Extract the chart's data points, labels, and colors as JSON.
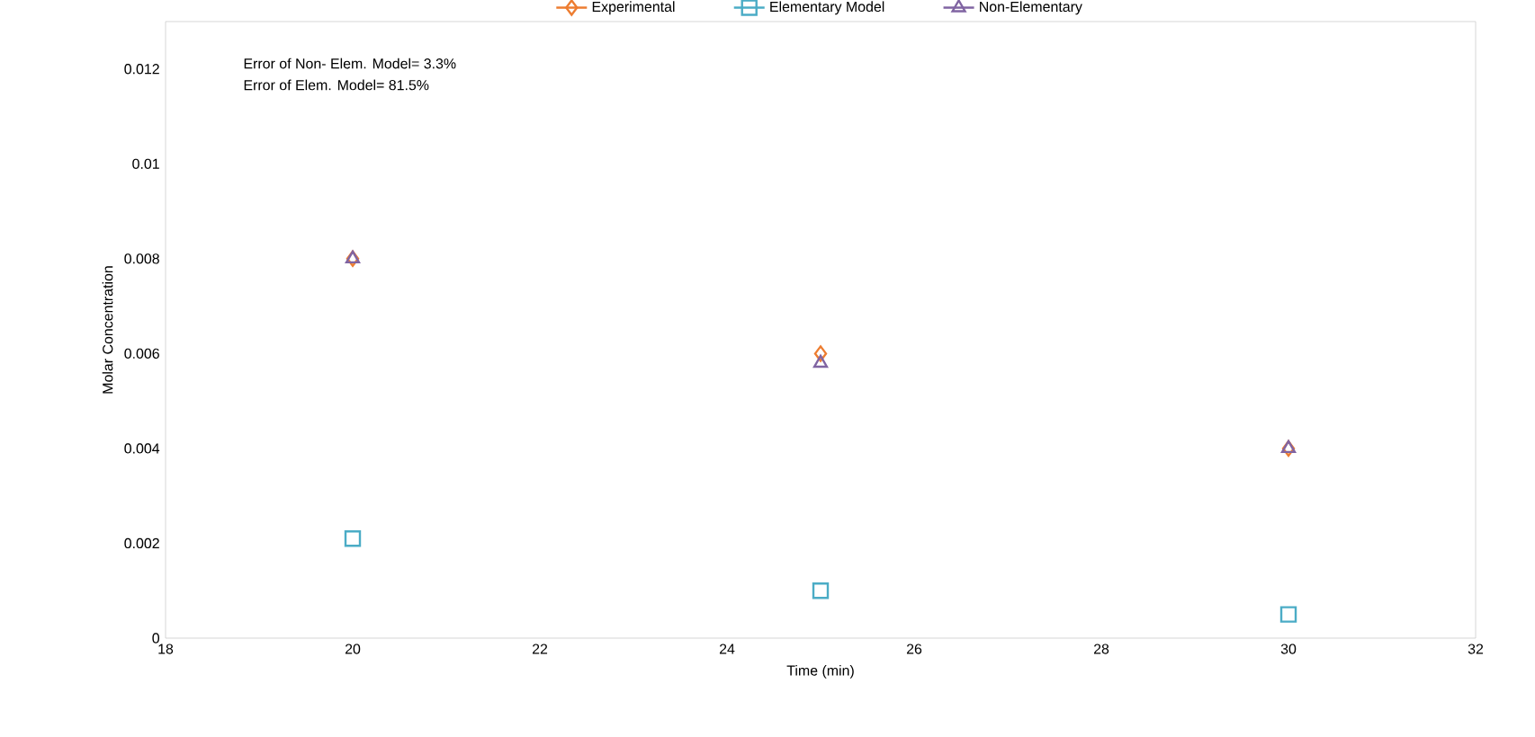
{
  "chart_data": {
    "type": "scatter",
    "xlabel": "Time (min)",
    "ylabel": "Molar  Concentration",
    "x": [
      20,
      25,
      30
    ],
    "series": [
      {
        "name": "Experimental",
        "color": "#ed7d31",
        "marker": "diamond",
        "values": [
          0.008,
          0.006,
          0.004
        ]
      },
      {
        "name": "Elementary Model",
        "color": "#4bacc6",
        "marker": "square",
        "values": [
          0.0021,
          0.001,
          0.0005
        ]
      },
      {
        "name": "Non-Elementary",
        "color": "#8064a2",
        "marker": "triangle",
        "values": [
          0.008,
          0.0058,
          0.004
        ]
      }
    ],
    "xlim": [
      18,
      32
    ],
    "xticks": [
      18,
      20,
      22,
      24,
      26,
      28,
      30,
      32
    ],
    "ylim": [
      0,
      0.013
    ],
    "yticks": [
      0,
      0.002,
      0.004,
      0.006,
      0.008,
      0.01,
      0.012
    ],
    "legend": "top",
    "annotations": [
      "Error of Non- Elem. Model= 3.3%",
      "Error of Elem. Model= 81.5%"
    ]
  }
}
